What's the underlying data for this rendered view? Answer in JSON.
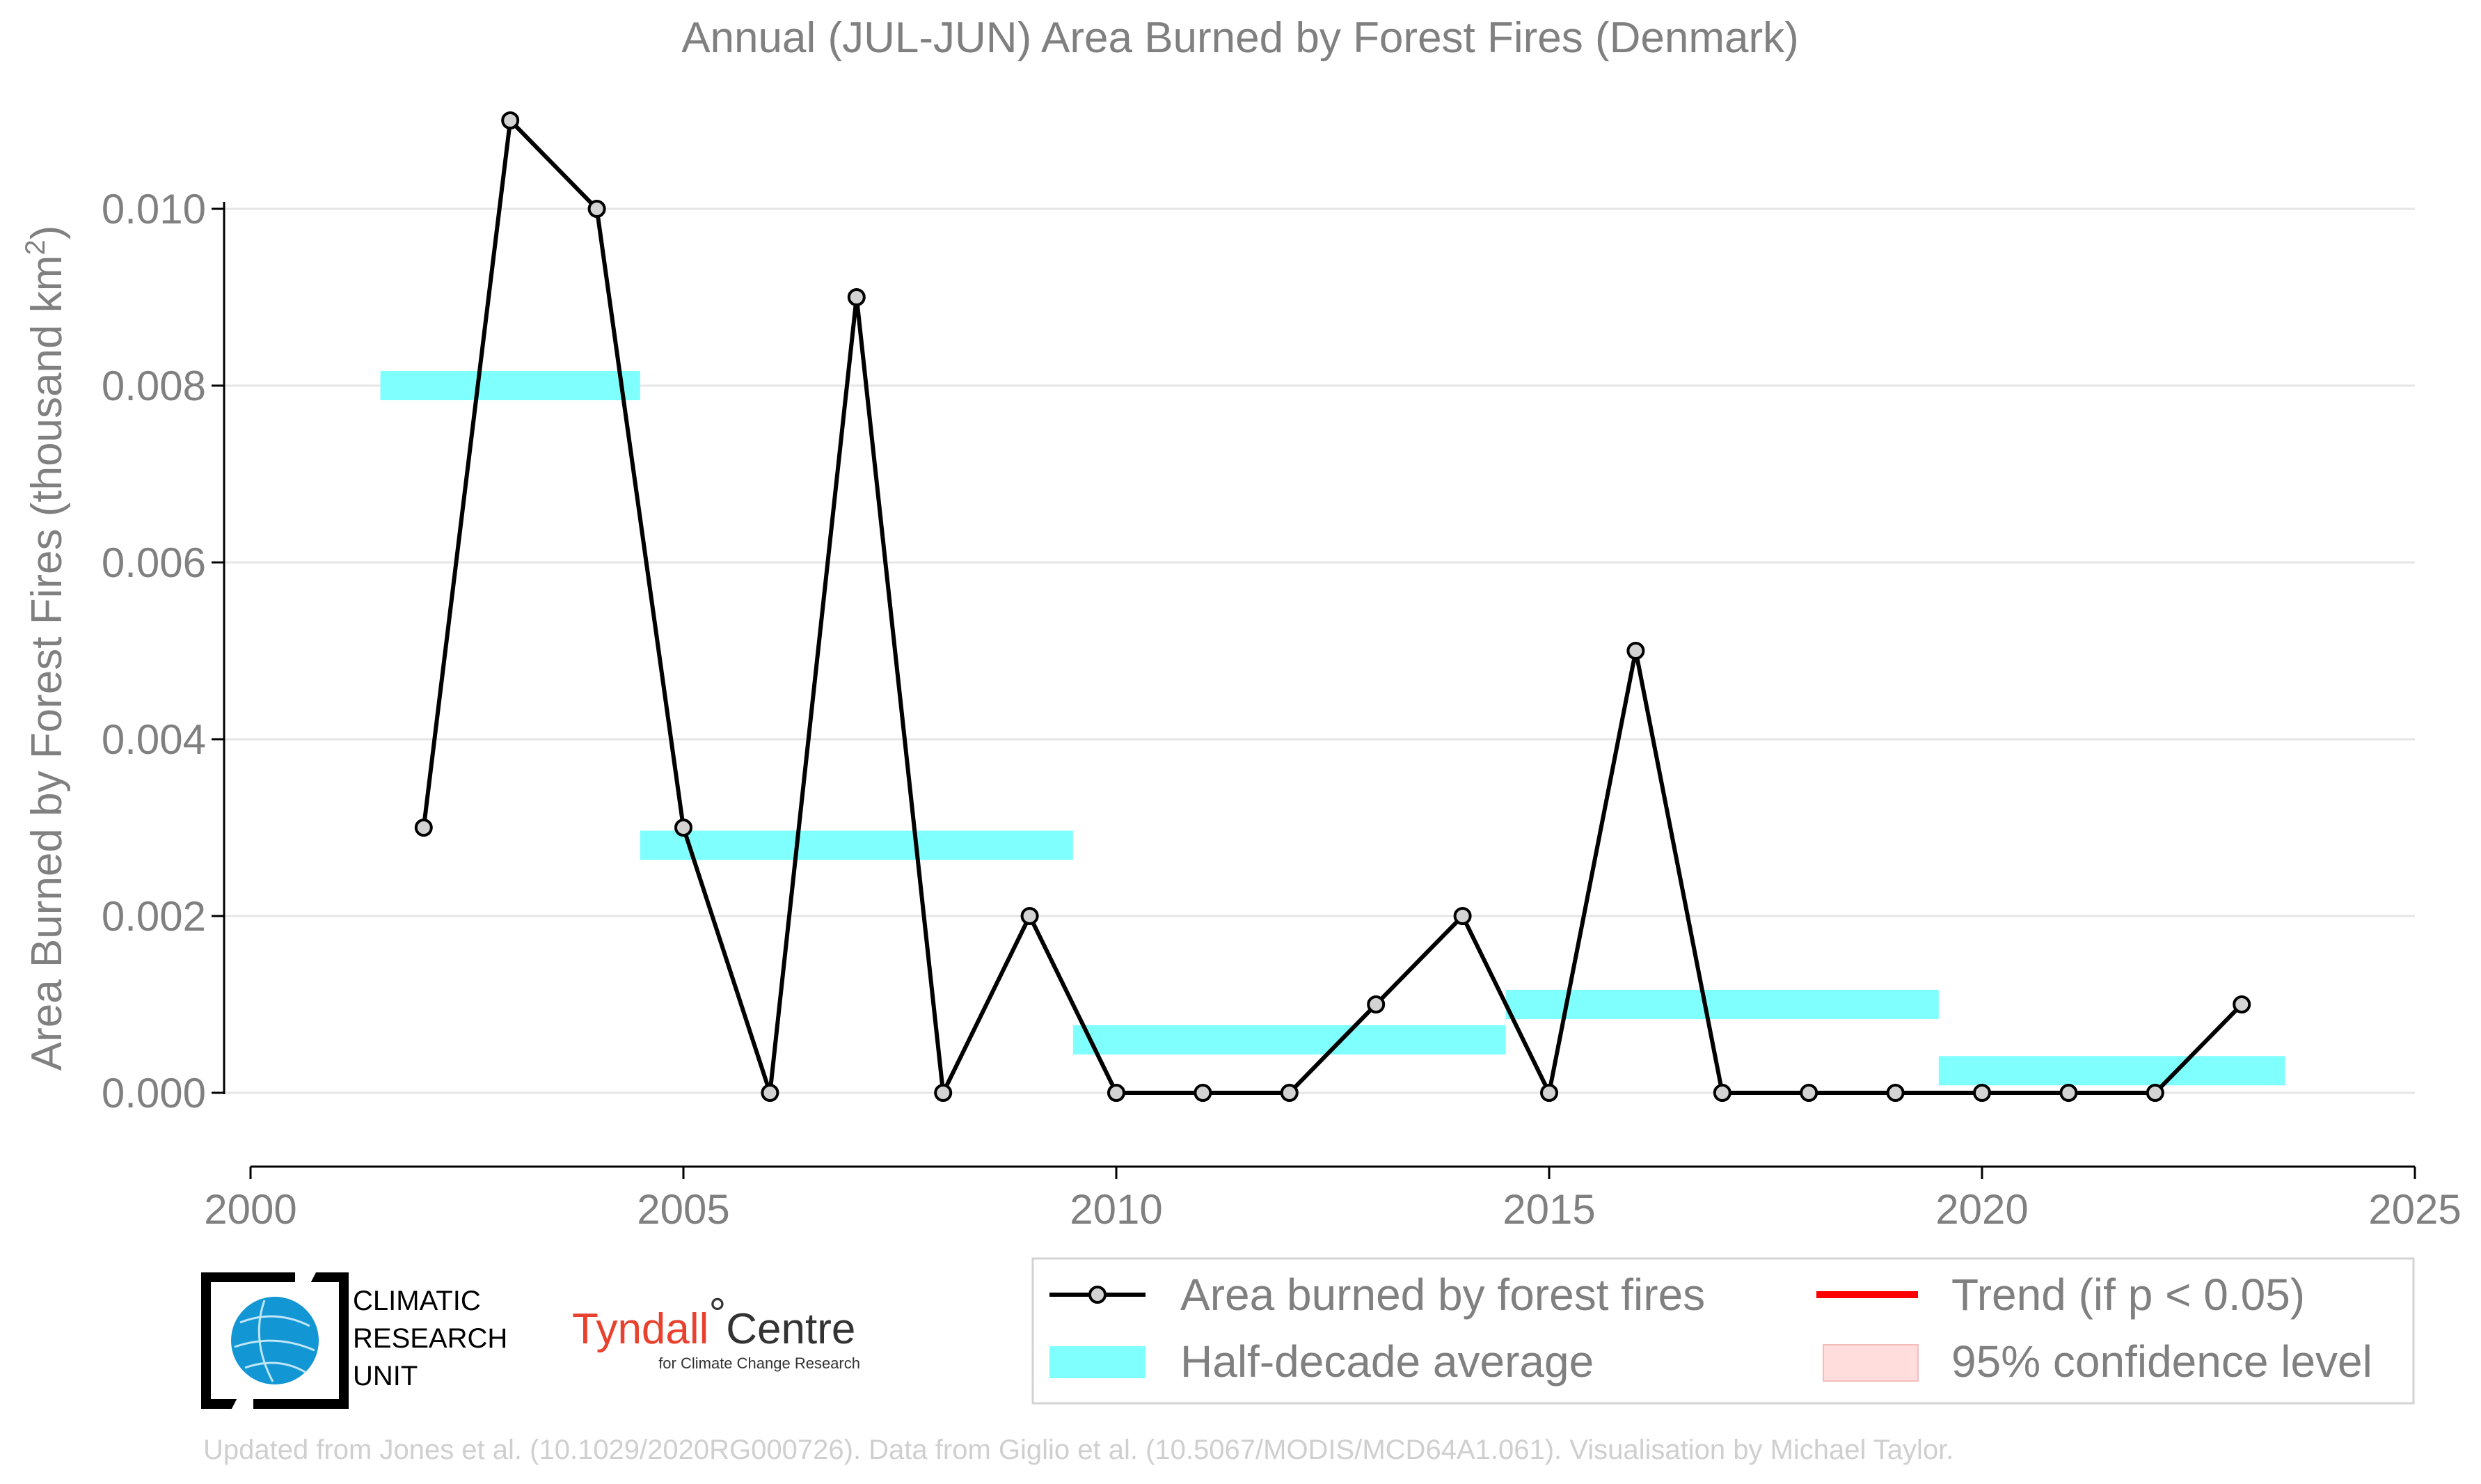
{
  "chart_data": {
    "type": "line",
    "title": "Annual (JUL-JUN) Area Burned by Forest Fires (Denmark)",
    "xlabel": "",
    "ylabel": "Area Burned by Forest Fires (thousand km",
    "ylabel_sup": "2",
    "ylabel_close": ")",
    "xlim": [
      2000,
      2025
    ],
    "ylim": [
      -0.00082,
      0.0112
    ],
    "x_ticks": [
      2000,
      2005,
      2010,
      2015,
      2020,
      2025
    ],
    "x_tick_labels": [
      "2000",
      "2005",
      "2010",
      "2015",
      "2020",
      "2025"
    ],
    "y_ticks": [
      0.0,
      0.002,
      0.004,
      0.006,
      0.008,
      0.01
    ],
    "y_tick_labels": [
      "0.000",
      "0.002",
      "0.004",
      "0.006",
      "0.008",
      "0.010"
    ],
    "grid": "horizontal",
    "series": [
      {
        "name": "Area burned by forest fires",
        "color": "#000000",
        "marker_fill": "#d3d3d3",
        "x": [
          2002,
          2003,
          2004,
          2005,
          2006,
          2007,
          2008,
          2009,
          2010,
          2011,
          2012,
          2013,
          2014,
          2015,
          2016,
          2017,
          2018,
          2019,
          2020,
          2021,
          2022,
          2023
        ],
        "y": [
          0.003,
          0.011,
          0.01,
          0.003,
          0.0,
          0.009,
          0.0,
          0.002,
          0.0,
          0.0,
          0.0,
          0.001,
          0.002,
          0.0,
          0.005,
          0.0,
          0.0,
          0.0,
          0.0,
          0.0,
          0.0,
          0.001
        ]
      }
    ],
    "half_decade_average": {
      "name": "Half-decade average",
      "color": "#80ffff",
      "segments": [
        {
          "x0": 2001.5,
          "x1": 2004.5,
          "y": 0.008
        },
        {
          "x0": 2004.5,
          "x1": 2009.5,
          "y": 0.0028
        },
        {
          "x0": 2009.5,
          "x1": 2014.5,
          "y": 0.0006
        },
        {
          "x0": 2014.5,
          "x1": 2019.5,
          "y": 0.001
        },
        {
          "x0": 2019.5,
          "x1": 2023.5,
          "y": 0.00025
        }
      ]
    },
    "legend": {
      "position": "bottom-right",
      "entries": [
        {
          "label": "Area burned by forest fires",
          "type": "line-marker",
          "color": "#000000"
        },
        {
          "label": "Trend (if p < 0.05)",
          "type": "line",
          "color": "#ff0000"
        },
        {
          "label": "Half-decade average",
          "type": "band",
          "color": "#80ffff"
        },
        {
          "label": "95% confidence level",
          "type": "band",
          "color": "#ffdddd"
        }
      ]
    }
  },
  "logos": {
    "cru_lines": [
      "CLIMATIC",
      "RESEARCH",
      "UNIT"
    ],
    "tyndall_main": "Tyndall",
    "tyndall_degree": "°",
    "tyndall_centre": "Centre",
    "tyndall_sub": "for Climate Change Research"
  },
  "footer": {
    "credit": "Updated from Jones et al. (10.1029/2020RG000726). Data from Giglio et al. (10.5067/MODIS/MCD64A1.061). Visualisation by Michael Taylor."
  }
}
